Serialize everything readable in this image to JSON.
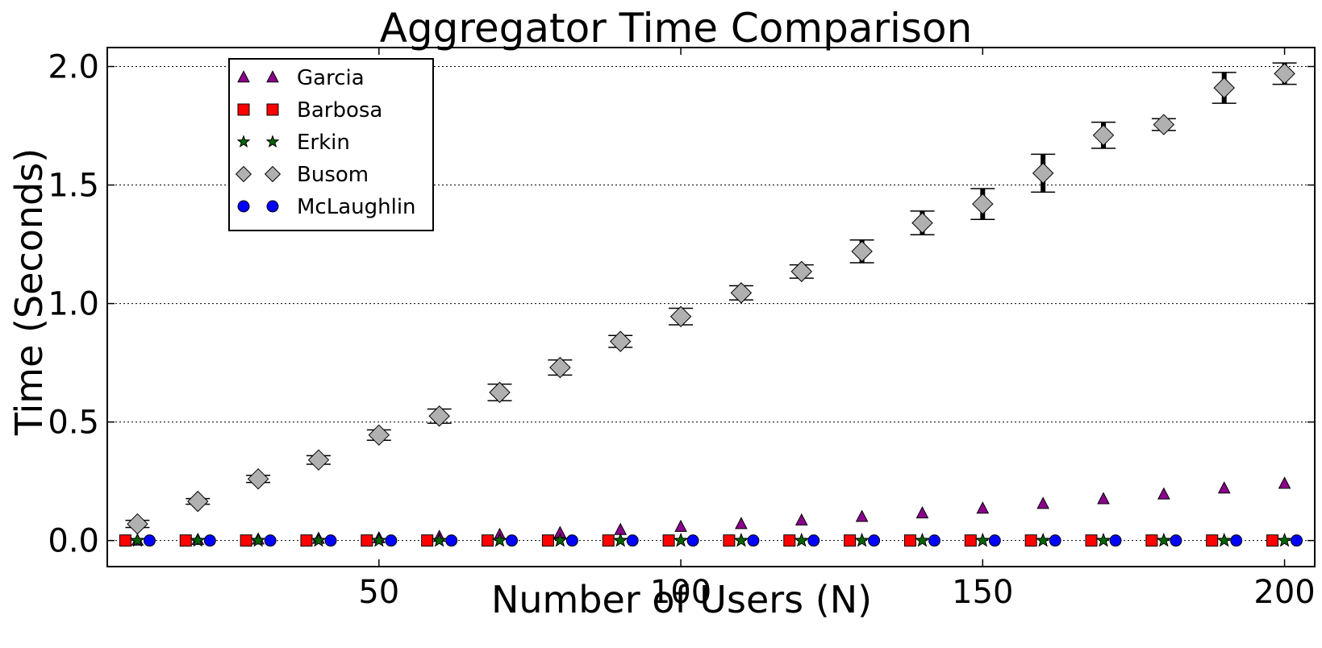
{
  "chart_data": {
    "type": "scatter",
    "title": "Aggregator Time Comparison",
    "xlabel": "Number of Users (N)",
    "ylabel": "Time (Seconds)",
    "xlim": [
      5,
      205
    ],
    "ylim": [
      -0.11,
      2.08
    ],
    "xticks": [
      50,
      100,
      150,
      200
    ],
    "xtick_labels": [
      "50",
      "100",
      "150",
      "200"
    ],
    "yticks": [
      0.0,
      0.5,
      1.0,
      1.5,
      2.0
    ],
    "ytick_labels": [
      "0.0",
      "0.5",
      "1.0",
      "1.5",
      "2.0"
    ],
    "grid": "horizontal dotted",
    "legend_position": "top-left",
    "x": [
      10,
      20,
      30,
      40,
      50,
      60,
      70,
      80,
      90,
      100,
      110,
      120,
      130,
      140,
      150,
      160,
      170,
      180,
      190,
      200
    ],
    "series": [
      {
        "name": "Garcia",
        "marker": "triangle",
        "color": "#8b008b",
        "values": [
          0.0,
          0.003,
          0.005,
          0.008,
          0.01,
          0.016,
          0.024,
          0.032,
          0.045,
          0.058,
          0.07,
          0.085,
          0.1,
          0.115,
          0.135,
          0.155,
          0.175,
          0.195,
          0.22,
          0.24
        ]
      },
      {
        "name": "Barbosa",
        "marker": "square",
        "color": "#ff0000",
        "values": [
          0,
          0,
          0,
          0,
          0,
          0,
          0,
          0,
          0,
          0,
          0,
          0,
          0,
          0,
          0,
          0,
          0,
          0,
          0,
          0
        ]
      },
      {
        "name": "Erkin",
        "marker": "star",
        "color": "#006400",
        "values": [
          0,
          0,
          0,
          0,
          0,
          0,
          0,
          0,
          0,
          0,
          0,
          0,
          0,
          0,
          0,
          0,
          0,
          0,
          0,
          0
        ]
      },
      {
        "name": "Busom",
        "marker": "diamond",
        "color": "#b0b0b0",
        "values": [
          0.07,
          0.165,
          0.26,
          0.34,
          0.445,
          0.525,
          0.625,
          0.73,
          0.84,
          0.945,
          1.045,
          1.135,
          1.22,
          1.34,
          1.42,
          1.55,
          1.71,
          1.755,
          1.91,
          1.97
        ],
        "errors": [
          0.015,
          0.012,
          0.015,
          0.018,
          0.022,
          0.03,
          0.035,
          0.032,
          0.025,
          0.035,
          0.03,
          0.028,
          0.048,
          0.05,
          0.065,
          0.08,
          0.055,
          0.025,
          0.065,
          0.045
        ]
      },
      {
        "name": "McLaughlin",
        "marker": "circle",
        "color": "#0000ff",
        "values": [
          0,
          0,
          0,
          0,
          0,
          0,
          0,
          0,
          0,
          0,
          0,
          0,
          0,
          0,
          0,
          0,
          0,
          0,
          0,
          0
        ]
      }
    ]
  }
}
